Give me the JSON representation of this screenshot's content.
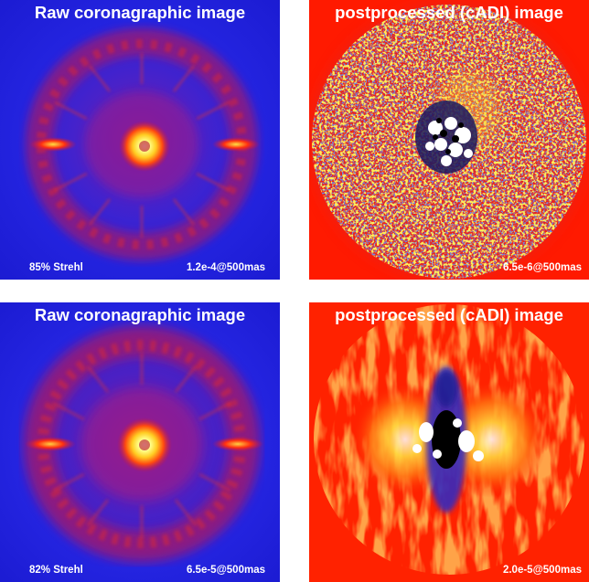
{
  "panels": {
    "top_left": {
      "title": "Raw  coronagraphic image",
      "strehl": "85% Strehl",
      "contrast": "1.2e-4@500mas"
    },
    "top_right": {
      "title": "postprocessed (cADI) image",
      "contrast": "6.5e-6@500mas"
    },
    "bottom_left": {
      "title": "Raw  coronagraphic image",
      "strehl": "82% Strehl",
      "contrast": "6.5e-5@500mas"
    },
    "bottom_right": {
      "title": "postprocessed (cADI) image",
      "contrast": "2.0e-5@500mas"
    }
  },
  "colors": {
    "raw_background": "#1f1fd8",
    "raw_halo": "#c81848",
    "raw_core": "#ffff66",
    "cadi_top_background": "#ff1a00",
    "cadi_top_residual": "#2a3cc8",
    "cadi_bottom_background": "#ff2200",
    "cadi_bottom_glow": "#ffd21a",
    "label_text": "#ffffff"
  }
}
